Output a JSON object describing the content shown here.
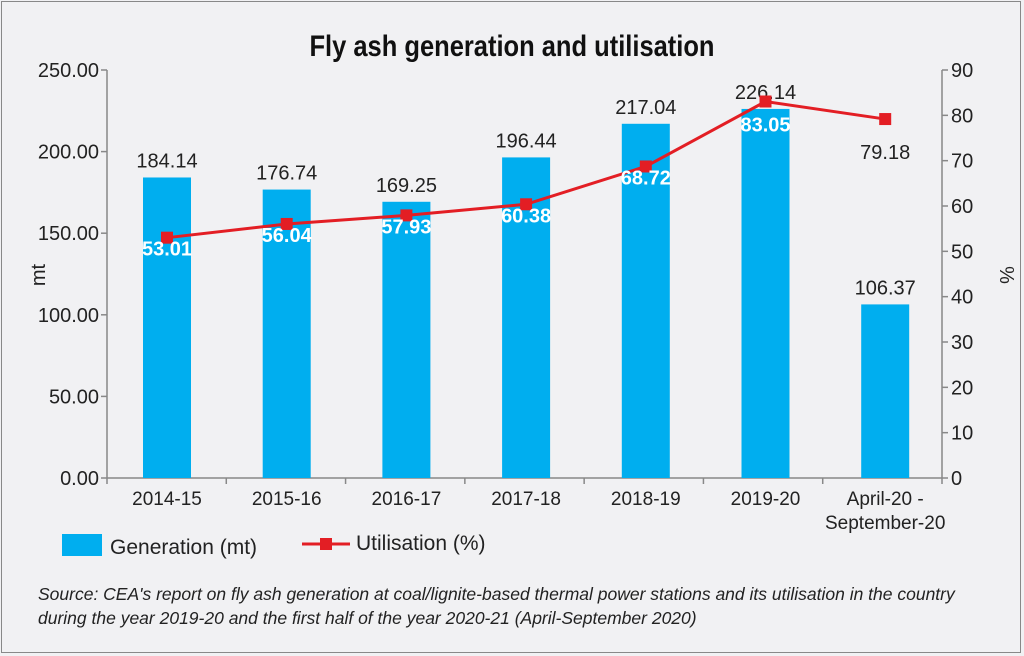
{
  "chart_data": {
    "type": "bar+line",
    "title": "Fly ash generation and utilisation",
    "categories": [
      "2014-15",
      "2015-16",
      "2016-17",
      "2017-18",
      "2018-19",
      "2019-20",
      "April-20 - September-20"
    ],
    "category_lines": [
      [
        "2014-15"
      ],
      [
        "2015-16"
      ],
      [
        "2016-17"
      ],
      [
        "2017-18"
      ],
      [
        "2018-19"
      ],
      [
        "2019-20"
      ],
      [
        "April-20 -",
        "September-20"
      ]
    ],
    "series": [
      {
        "name": "Generation (mt)",
        "type": "bar",
        "axis": "left",
        "color": "#00aeef",
        "values": [
          184.14,
          176.74,
          169.25,
          196.44,
          217.04,
          226.14,
          106.37
        ],
        "labels": [
          "184.14",
          "176.74",
          "169.25",
          "196.44",
          "217.04",
          "226.14",
          "106.37"
        ]
      },
      {
        "name": "Utilisation (%)",
        "type": "line",
        "axis": "right",
        "color": "#e31e24",
        "values": [
          53.01,
          56.04,
          57.93,
          60.38,
          68.72,
          83.05,
          79.18
        ],
        "labels": [
          "53.01",
          "56.04",
          "57.93",
          "60.38",
          "68.72",
          "83.05",
          "79.18"
        ]
      }
    ],
    "ylabel_left": "mt",
    "ylim_left": [
      0,
      250
    ],
    "yticks_left": [
      "0.00",
      "50.00",
      "100.00",
      "150.00",
      "200.00",
      "250.00"
    ],
    "ylabel_right": "%",
    "ylim_right": [
      0,
      90
    ],
    "yticks_right": [
      "0",
      "10",
      "20",
      "30",
      "40",
      "50",
      "60",
      "70",
      "80",
      "90"
    ],
    "grid": false,
    "legend": "bottom-left"
  },
  "source": "Source: CEA's report on fly ash generation at coal/lignite-based thermal power stations and its utilisation in the country during the year 2019-20 and the first half of the year 2020-21 (April-September 2020)"
}
